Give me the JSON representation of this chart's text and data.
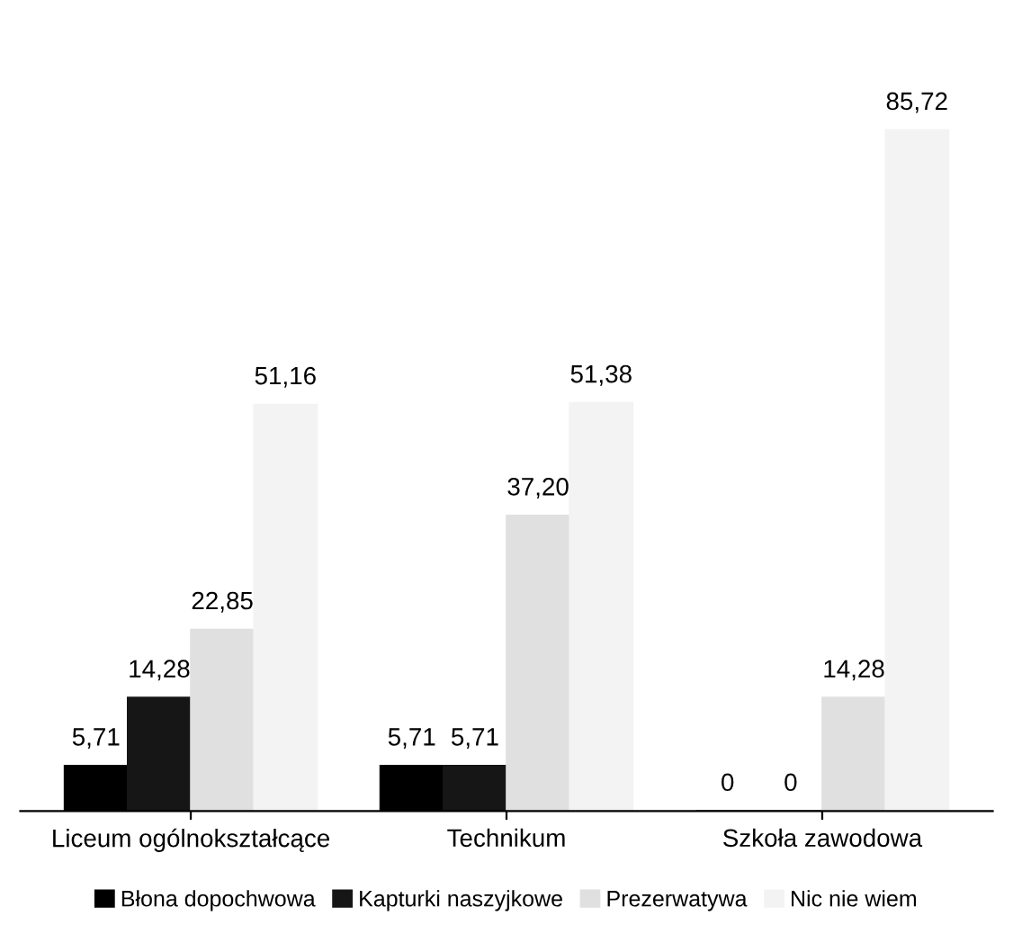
{
  "chart_data": {
    "type": "bar",
    "categories": [
      "Liceum ogólnokształcące",
      "Technikum",
      "Szkoła zawodowa"
    ],
    "series": [
      {
        "name": "Błona dopochwowa",
        "color": "#000000",
        "values": [
          5.71,
          5.71,
          0
        ],
        "value_labels": [
          "5,71",
          "5,71",
          "0"
        ]
      },
      {
        "name": "Kapturki naszyjkowe",
        "color": "#161616",
        "values": [
          14.28,
          5.71,
          0
        ],
        "value_labels": [
          "14,28",
          "5,71",
          "0"
        ]
      },
      {
        "name": "Prezerwatywa",
        "color": "#e0e0e0",
        "values": [
          22.85,
          37.2,
          14.28
        ],
        "value_labels": [
          "22,85",
          "37,20",
          "14,28"
        ]
      },
      {
        "name": "Nic nie wiem",
        "color": "#f3f3f3",
        "values": [
          51.16,
          51.38,
          85.72
        ],
        "value_labels": [
          "51,16",
          "51,38",
          "85,72"
        ]
      }
    ],
    "legend": "bottom",
    "grid": false
  }
}
